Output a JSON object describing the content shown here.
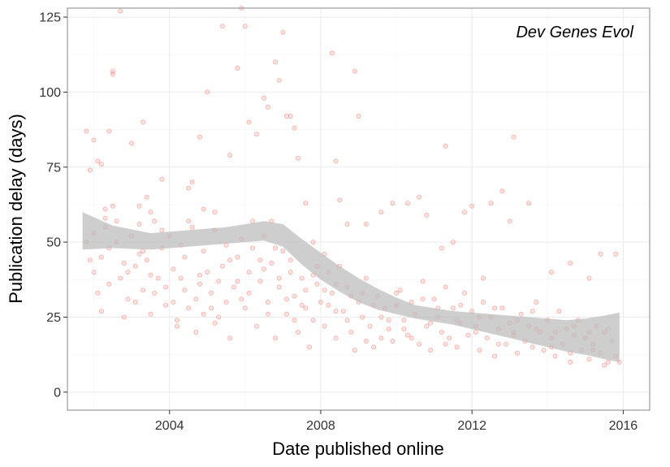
{
  "chart_data": {
    "type": "scatter",
    "annotation": "Dev Genes Evol",
    "xlabel": "Date published online",
    "ylabel": "Publication delay (days)",
    "xlim": [
      2001.3,
      2016.7
    ],
    "ylim": [
      -6,
      128
    ],
    "x_ticks": [
      {
        "value": 2004,
        "label": "2004"
      },
      {
        "value": 2008,
        "label": "2008"
      },
      {
        "value": 2012,
        "label": "2012"
      },
      {
        "value": 2016,
        "label": "2016"
      }
    ],
    "y_ticks": [
      {
        "value": 0,
        "label": "0"
      },
      {
        "value": 25,
        "label": "25"
      },
      {
        "value": 50,
        "label": "50"
      },
      {
        "value": 75,
        "label": "75"
      },
      {
        "value": 100,
        "label": "100"
      },
      {
        "value": 125,
        "label": "125"
      }
    ],
    "grid": true,
    "colors": {
      "points": "#f8766d",
      "band": "#bdbdbd",
      "panel_border": "#999999",
      "grid": "#ebebeb"
    },
    "smooth": {
      "x": [
        2001.7,
        2002.5,
        2003.5,
        2004.5,
        2005.5,
        2006.0,
        2006.5,
        2007.0,
        2007.5,
        2008.0,
        2008.5,
        2009.0,
        2009.5,
        2010.0,
        2010.5,
        2011.0,
        2011.5,
        2012.0,
        2012.5,
        2013.0,
        2013.5,
        2014.0,
        2014.5,
        2015.0,
        2015.5,
        2015.9
      ],
      "fit": [
        53.5,
        51.5,
        50.5,
        51.5,
        52.5,
        53.5,
        54.0,
        52.5,
        46.5,
        42.0,
        38.0,
        34.0,
        31.0,
        28.5,
        27.0,
        26.0,
        25.0,
        24.0,
        23.0,
        22.0,
        21.0,
        20.0,
        19.0,
        18.0,
        18.0,
        18.0
      ],
      "lower": [
        47.5,
        48.0,
        47.5,
        48.5,
        49.5,
        50.0,
        50.5,
        48.5,
        42.5,
        37.5,
        33.5,
        30.0,
        27.5,
        26.0,
        24.5,
        23.5,
        22.5,
        21.0,
        19.5,
        18.0,
        16.5,
        15.0,
        13.5,
        12.5,
        11.0,
        10.0
      ],
      "upper": [
        60.0,
        55.5,
        53.0,
        54.0,
        55.0,
        56.0,
        57.0,
        56.0,
        51.0,
        46.5,
        42.0,
        38.0,
        34.5,
        31.5,
        29.0,
        28.0,
        27.0,
        26.5,
        26.0,
        25.5,
        25.0,
        24.5,
        24.0,
        24.5,
        25.5,
        26.5
      ]
    },
    "points": [
      [
        2001.8,
        87
      ],
      [
        2001.9,
        74
      ],
      [
        2002.0,
        84
      ],
      [
        2002.1,
        77
      ],
      [
        2002.2,
        76
      ],
      [
        2002.3,
        61
      ],
      [
        2002.4,
        87
      ],
      [
        2002.5,
        106
      ],
      [
        2002.5,
        107
      ],
      [
        2002.7,
        127
      ],
      [
        2003.0,
        83
      ],
      [
        2003.2,
        62
      ],
      [
        2003.3,
        90
      ],
      [
        2003.4,
        65
      ],
      [
        2003.5,
        60
      ],
      [
        2003.8,
        71
      ],
      [
        2004.3,
        49
      ],
      [
        2004.5,
        68
      ],
      [
        2004.6,
        70
      ],
      [
        2004.8,
        85
      ],
      [
        2004.9,
        61
      ],
      [
        2005.0,
        100
      ],
      [
        2005.2,
        60
      ],
      [
        2005.4,
        122
      ],
      [
        2005.6,
        79
      ],
      [
        2005.8,
        108
      ],
      [
        2005.9,
        128
      ],
      [
        2006.0,
        122
      ],
      [
        2006.1,
        90
      ],
      [
        2006.3,
        86
      ],
      [
        2006.5,
        98
      ],
      [
        2006.6,
        95
      ],
      [
        2006.7,
        57
      ],
      [
        2006.8,
        110
      ],
      [
        2006.9,
        104
      ],
      [
        2007.0,
        120
      ],
      [
        2007.1,
        92
      ],
      [
        2007.2,
        92
      ],
      [
        2007.3,
        88
      ],
      [
        2007.4,
        78
      ],
      [
        2007.6,
        63
      ],
      [
        2007.8,
        50
      ],
      [
        2008.1,
        46
      ],
      [
        2008.3,
        113
      ],
      [
        2008.4,
        77
      ],
      [
        2008.5,
        64
      ],
      [
        2008.7,
        56
      ],
      [
        2008.9,
        107
      ],
      [
        2009.0,
        92
      ],
      [
        2009.2,
        56
      ],
      [
        2009.6,
        60
      ],
      [
        2009.9,
        63
      ],
      [
        2010.3,
        63
      ],
      [
        2010.6,
        65
      ],
      [
        2010.8,
        59
      ],
      [
        2011.2,
        48
      ],
      [
        2011.3,
        82
      ],
      [
        2011.5,
        50
      ],
      [
        2011.8,
        60
      ],
      [
        2012.0,
        62
      ],
      [
        2012.3,
        38
      ],
      [
        2012.5,
        63
      ],
      [
        2012.8,
        67
      ],
      [
        2013.0,
        57
      ],
      [
        2013.1,
        85
      ],
      [
        2013.5,
        63
      ],
      [
        2014.1,
        40
      ],
      [
        2014.6,
        43
      ],
      [
        2015.1,
        38
      ],
      [
        2015.4,
        46
      ],
      [
        2015.8,
        46
      ],
      [
        2001.8,
        50
      ],
      [
        2001.9,
        44
      ],
      [
        2002.0,
        40
      ],
      [
        2002.1,
        33
      ],
      [
        2002.2,
        27
      ],
      [
        2002.3,
        55
      ],
      [
        2002.4,
        48
      ],
      [
        2002.5,
        62
      ],
      [
        2002.6,
        57
      ],
      [
        2002.7,
        38
      ],
      [
        2002.8,
        25
      ],
      [
        2002.9,
        40
      ],
      [
        2003.0,
        52
      ],
      [
        2003.1,
        30
      ],
      [
        2003.2,
        46
      ],
      [
        2003.3,
        34
      ],
      [
        2003.4,
        44
      ],
      [
        2003.5,
        26
      ],
      [
        2003.6,
        57
      ],
      [
        2003.7,
        38
      ],
      [
        2003.8,
        48
      ],
      [
        2003.9,
        35
      ],
      [
        2004.0,
        52
      ],
      [
        2004.1,
        30
      ],
      [
        2004.2,
        22
      ],
      [
        2004.3,
        38
      ],
      [
        2004.4,
        45
      ],
      [
        2004.5,
        28
      ],
      [
        2004.6,
        55
      ],
      [
        2004.7,
        20
      ],
      [
        2004.8,
        36
      ],
      [
        2004.9,
        26
      ],
      [
        2005.0,
        40
      ],
      [
        2005.1,
        33
      ],
      [
        2005.2,
        54
      ],
      [
        2005.3,
        25
      ],
      [
        2005.4,
        42
      ],
      [
        2005.5,
        30
      ],
      [
        2005.6,
        18
      ],
      [
        2005.7,
        35
      ],
      [
        2005.8,
        45
      ],
      [
        2005.9,
        51
      ],
      [
        2006.0,
        28
      ],
      [
        2006.1,
        40
      ],
      [
        2006.2,
        48
      ],
      [
        2006.3,
        22
      ],
      [
        2006.4,
        37
      ],
      [
        2006.5,
        52
      ],
      [
        2006.6,
        30
      ],
      [
        2006.7,
        43
      ],
      [
        2006.8,
        18
      ],
      [
        2006.9,
        35
      ],
      [
        2007.0,
        47
      ],
      [
        2007.1,
        26
      ],
      [
        2007.2,
        40
      ],
      [
        2007.3,
        32
      ],
      [
        2007.4,
        20
      ],
      [
        2007.5,
        38
      ],
      [
        2007.6,
        28
      ],
      [
        2007.7,
        15
      ],
      [
        2007.8,
        24
      ],
      [
        2007.9,
        36
      ],
      [
        2008.0,
        30
      ],
      [
        2008.1,
        22
      ],
      [
        2008.2,
        40
      ],
      [
        2008.3,
        33
      ],
      [
        2008.4,
        18
      ],
      [
        2008.5,
        42
      ],
      [
        2008.6,
        27
      ],
      [
        2008.7,
        35
      ],
      [
        2008.8,
        20
      ],
      [
        2008.9,
        14
      ],
      [
        2009.0,
        30
      ],
      [
        2009.1,
        25
      ],
      [
        2009.2,
        38
      ],
      [
        2009.3,
        22
      ],
      [
        2009.4,
        15
      ],
      [
        2009.5,
        32
      ],
      [
        2009.6,
        18
      ],
      [
        2009.7,
        28
      ],
      [
        2009.8,
        21
      ],
      [
        2009.9,
        17
      ],
      [
        2010.0,
        29
      ],
      [
        2010.1,
        34
      ],
      [
        2010.2,
        24
      ],
      [
        2010.3,
        19
      ],
      [
        2010.4,
        30
      ],
      [
        2010.5,
        26
      ],
      [
        2010.6,
        16
      ],
      [
        2010.7,
        37
      ],
      [
        2010.8,
        22
      ],
      [
        2010.9,
        14
      ],
      [
        2011.0,
        31
      ],
      [
        2011.1,
        25
      ],
      [
        2011.2,
        20
      ],
      [
        2011.3,
        35
      ],
      [
        2011.4,
        18
      ],
      [
        2011.5,
        28
      ],
      [
        2011.6,
        15
      ],
      [
        2011.7,
        23
      ],
      [
        2011.8,
        33
      ],
      [
        2011.9,
        19
      ],
      [
        2012.0,
        27
      ],
      [
        2012.1,
        22
      ],
      [
        2012.2,
        14
      ],
      [
        2012.3,
        30
      ],
      [
        2012.4,
        18
      ],
      [
        2012.5,
        25
      ],
      [
        2012.6,
        12
      ],
      [
        2012.7,
        21
      ],
      [
        2012.8,
        28
      ],
      [
        2012.9,
        16
      ],
      [
        2013.0,
        23
      ],
      [
        2013.1,
        19
      ],
      [
        2013.2,
        13
      ],
      [
        2013.3,
        26
      ],
      [
        2013.4,
        17
      ],
      [
        2013.5,
        22
      ],
      [
        2013.6,
        15
      ],
      [
        2013.7,
        30
      ],
      [
        2013.8,
        20
      ],
      [
        2013.9,
        14
      ],
      [
        2014.0,
        24
      ],
      [
        2014.1,
        18
      ],
      [
        2014.2,
        12
      ],
      [
        2014.3,
        27
      ],
      [
        2014.4,
        16
      ],
      [
        2014.5,
        21
      ],
      [
        2014.6,
        10
      ],
      [
        2014.7,
        19
      ],
      [
        2014.8,
        24
      ],
      [
        2014.9,
        14
      ],
      [
        2015.0,
        18
      ],
      [
        2015.1,
        11
      ],
      [
        2015.2,
        16
      ],
      [
        2015.3,
        22
      ],
      [
        2015.4,
        13
      ],
      [
        2015.5,
        20
      ],
      [
        2015.6,
        10
      ],
      [
        2015.7,
        17
      ],
      [
        2015.8,
        12
      ],
      [
        2015.9,
        10
      ],
      [
        2002.2,
        45
      ],
      [
        2002.4,
        36
      ],
      [
        2002.6,
        50
      ],
      [
        2002.9,
        31
      ],
      [
        2003.1,
        42
      ],
      [
        2003.3,
        47
      ],
      [
        2003.6,
        33
      ],
      [
        2003.9,
        29
      ],
      [
        2004.1,
        41
      ],
      [
        2004.4,
        34
      ],
      [
        2004.7,
        31
      ],
      [
        2004.9,
        47
      ],
      [
        2005.1,
        28
      ],
      [
        2005.3,
        37
      ],
      [
        2005.6,
        44
      ],
      [
        2005.9,
        31
      ],
      [
        2006.1,
        33
      ],
      [
        2006.4,
        44
      ],
      [
        2006.6,
        26
      ],
      [
        2006.9,
        38
      ],
      [
        2007.1,
        31
      ],
      [
        2007.3,
        24
      ],
      [
        2007.6,
        34
      ],
      [
        2007.9,
        42
      ],
      [
        2008.2,
        29
      ],
      [
        2008.4,
        36
      ],
      [
        2008.7,
        24
      ],
      [
        2009.1,
        33
      ],
      [
        2009.4,
        29
      ],
      [
        2009.8,
        24
      ],
      [
        2010.2,
        21
      ],
      [
        2010.7,
        31
      ],
      [
        2011.1,
        28
      ],
      [
        2011.6,
        24
      ],
      [
        2012.1,
        20
      ],
      [
        2012.6,
        28
      ],
      [
        2013.2,
        24
      ],
      [
        2013.7,
        21
      ],
      [
        2014.2,
        20
      ],
      [
        2014.7,
        22
      ],
      [
        2015.2,
        14
      ],
      [
        2015.6,
        21
      ],
      [
        2002.0,
        53
      ],
      [
        2002.3,
        58
      ],
      [
        2002.8,
        43
      ],
      [
        2003.2,
        56
      ],
      [
        2003.5,
        39
      ],
      [
        2003.8,
        54
      ],
      [
        2004.2,
        24
      ],
      [
        2004.5,
        57
      ],
      [
        2004.8,
        39
      ],
      [
        2005.2,
        23
      ],
      [
        2005.5,
        49
      ],
      [
        2005.8,
        37
      ],
      [
        2006.2,
        57
      ],
      [
        2006.5,
        41
      ],
      [
        2006.8,
        48
      ],
      [
        2007.2,
        44
      ],
      [
        2007.5,
        29
      ],
      [
        2007.8,
        39
      ],
      [
        2008.1,
        34
      ],
      [
        2008.4,
        27
      ],
      [
        2008.8,
        32
      ],
      [
        2009.2,
        17
      ],
      [
        2009.6,
        25
      ],
      [
        2010.0,
        33
      ],
      [
        2010.4,
        18
      ],
      [
        2010.9,
        23
      ],
      [
        2011.3,
        16
      ],
      [
        2011.7,
        29
      ],
      [
        2012.2,
        25
      ],
      [
        2012.7,
        16
      ],
      [
        2013.1,
        20
      ],
      [
        2013.6,
        27
      ],
      [
        2014.1,
        15
      ],
      [
        2014.6,
        13
      ],
      [
        2015.1,
        20
      ],
      [
        2015.5,
        9
      ]
    ]
  }
}
